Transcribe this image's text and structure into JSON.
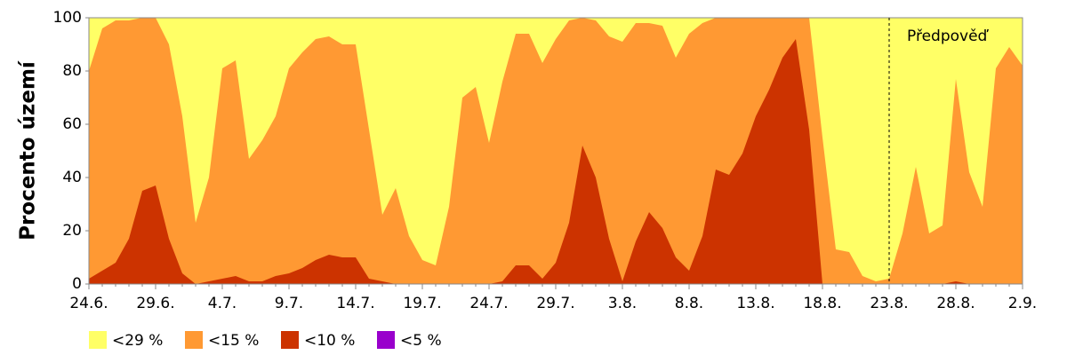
{
  "chart_data": {
    "type": "area",
    "y_label": "Procento území",
    "categories": [
      "24.6.",
      null,
      null,
      null,
      null,
      "29.6.",
      null,
      null,
      null,
      null,
      "4.7.",
      null,
      null,
      null,
      null,
      "9.7.",
      null,
      null,
      null,
      null,
      "14.7.",
      null,
      null,
      null,
      null,
      "19.7.",
      null,
      null,
      null,
      null,
      "24.7.",
      null,
      null,
      null,
      null,
      "29.7.",
      null,
      null,
      null,
      null,
      "3.8.",
      null,
      null,
      null,
      null,
      "8.8.",
      null,
      null,
      null,
      null,
      "13.8.",
      null,
      null,
      null,
      null,
      "18.8.",
      null,
      null,
      null,
      null,
      "23.8.",
      null,
      null,
      null,
      null,
      "28.8.",
      null,
      null,
      null,
      null,
      "2.9."
    ],
    "series": [
      {
        "name": "<29 %",
        "color": "#ffff66",
        "values": [
          100,
          100,
          100,
          100,
          100,
          100,
          100,
          100,
          100,
          100,
          100,
          100,
          100,
          100,
          100,
          100,
          100,
          100,
          100,
          100,
          100,
          100,
          100,
          100,
          100,
          100,
          100,
          100,
          100,
          100,
          100,
          100,
          100,
          100,
          100,
          100,
          100,
          100,
          100,
          100,
          100,
          100,
          100,
          100,
          100,
          100,
          100,
          100,
          100,
          100,
          100,
          100,
          100,
          100,
          100,
          100,
          100,
          100,
          100,
          100,
          100,
          100,
          100,
          100,
          100,
          100,
          100,
          100,
          100,
          100,
          100
        ]
      },
      {
        "name": "<15 %",
        "color": "#ff9933",
        "values": [
          80,
          96,
          99,
          99,
          100,
          100,
          90,
          63,
          23,
          40,
          81,
          84,
          47,
          54,
          63,
          81,
          87,
          92,
          93,
          90,
          90,
          58,
          26,
          36,
          18,
          9,
          7,
          29,
          70,
          74,
          53,
          76,
          94,
          94,
          83,
          92,
          99,
          100,
          99,
          93,
          91,
          98,
          98,
          97,
          85,
          94,
          98,
          100,
          100,
          100,
          100,
          100,
          100,
          100,
          100,
          55,
          13,
          12,
          3,
          1,
          2,
          19,
          44,
          19,
          22,
          77,
          42,
          29,
          81,
          89,
          82
        ]
      },
      {
        "name": "<10 %",
        "color": "#cc3300",
        "values": [
          2,
          5,
          8,
          17,
          35,
          37,
          17,
          4,
          0,
          1,
          2,
          3,
          1,
          1,
          3,
          4,
          6,
          9,
          11,
          10,
          10,
          2,
          1,
          0,
          0,
          0,
          0,
          0,
          0,
          0,
          0,
          1,
          7,
          7,
          2,
          8,
          23,
          52,
          40,
          17,
          1,
          16,
          27,
          21,
          10,
          5,
          18,
          43,
          41,
          49,
          63,
          73,
          85,
          92,
          58,
          0,
          0,
          0,
          0,
          0,
          0,
          0,
          0,
          0,
          0,
          1,
          0,
          0,
          0,
          0,
          0
        ]
      },
      {
        "name": "<5 %",
        "color": "#9900cc",
        "values": [
          0,
          0,
          0,
          0,
          0,
          0,
          0,
          0,
          0,
          0,
          0,
          0,
          0,
          0,
          0,
          0,
          0,
          0,
          0,
          0,
          0,
          0,
          0,
          0,
          0,
          0,
          0,
          0,
          0,
          0,
          0,
          0,
          0,
          0,
          0,
          0,
          0,
          0,
          0,
          0,
          0,
          0,
          0,
          0,
          0,
          0,
          0,
          0,
          0,
          0,
          0,
          0,
          0,
          0,
          0,
          0,
          0,
          0,
          0,
          0,
          0,
          0,
          0,
          0,
          0,
          0,
          0,
          0,
          0,
          0,
          0
        ]
      }
    ],
    "ylim": [
      0,
      100
    ],
    "yticks": [
      0,
      20,
      40,
      60,
      80,
      100
    ],
    "annotations": [
      {
        "text": "Předpověď",
        "x": "23.8."
      }
    ]
  }
}
